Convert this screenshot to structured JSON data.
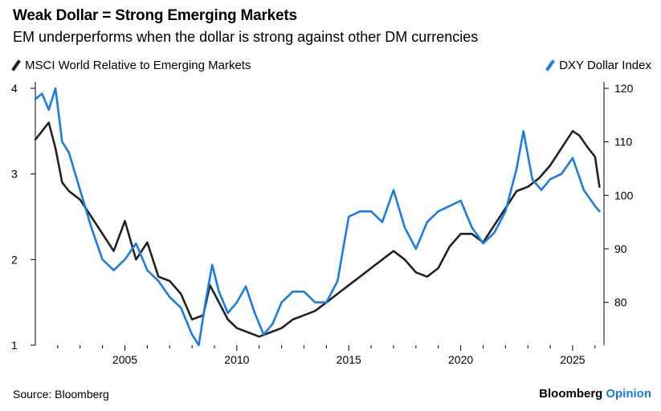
{
  "header": {
    "title": "Weak Dollar = Strong Emerging Markets",
    "subtitle": "EM underperforms when the dollar is strong against other DM currencies"
  },
  "footer": {
    "source": "Source: Bloomberg",
    "brand": "Bloomberg",
    "brand_accent": "Opinion"
  },
  "colors": {
    "msci": "#222222",
    "dxy": "#1a7bea",
    "axis": "#000000"
  },
  "chart_data": {
    "type": "line",
    "title": "Weak Dollar = Strong Emerging Markets",
    "subtitle": "EM underperforms when the dollar is strong against other DM currencies",
    "legend": "top",
    "grid": false,
    "x_ticks": [
      "2005",
      "2010",
      "2015",
      "2020",
      "2025"
    ],
    "x_range": [
      2001.0,
      2026.4
    ],
    "y_left": {
      "range": [
        1,
        4
      ],
      "ticks": [
        "1",
        "2",
        "3",
        "4"
      ]
    },
    "y_right": {
      "range": [
        72,
        120
      ],
      "ticks": [
        "80",
        "90",
        "100",
        "110",
        "120"
      ]
    },
    "series": [
      {
        "name": "MSCI World Relative to Emerging Markets",
        "axis": "left",
        "color": "#222222",
        "x": [
          2001.0,
          2001.3,
          2001.6,
          2001.9,
          2002.2,
          2002.5,
          2003.0,
          2003.5,
          2004.0,
          2004.5,
          2005.0,
          2005.5,
          2006.0,
          2006.5,
          2007.0,
          2007.5,
          2008.0,
          2008.5,
          2008.8,
          2009.2,
          2009.6,
          2010.0,
          2010.5,
          2011.0,
          2011.5,
          2012.0,
          2012.5,
          2013.0,
          2013.5,
          2014.0,
          2014.5,
          2015.0,
          2015.5,
          2016.0,
          2016.5,
          2017.0,
          2017.5,
          2018.0,
          2018.5,
          2019.0,
          2019.5,
          2020.0,
          2020.5,
          2021.0,
          2021.5,
          2022.0,
          2022.5,
          2023.0,
          2023.5,
          2024.0,
          2024.5,
          2025.0,
          2025.3,
          2025.7,
          2026.0,
          2026.2
        ],
        "values": [
          3.4,
          3.5,
          3.6,
          3.3,
          2.9,
          2.8,
          2.7,
          2.5,
          2.3,
          2.1,
          2.45,
          2.0,
          2.2,
          1.8,
          1.75,
          1.6,
          1.3,
          1.35,
          1.7,
          1.5,
          1.3,
          1.2,
          1.15,
          1.1,
          1.15,
          1.2,
          1.3,
          1.35,
          1.4,
          1.5,
          1.6,
          1.7,
          1.8,
          1.9,
          2.0,
          2.1,
          2.0,
          1.85,
          1.8,
          1.9,
          2.15,
          2.3,
          2.3,
          2.2,
          2.4,
          2.6,
          2.8,
          2.85,
          2.95,
          3.1,
          3.3,
          3.5,
          3.45,
          3.3,
          3.2,
          2.85
        ]
      },
      {
        "name": "DXY Dollar Index",
        "axis": "right",
        "color": "#1a7bea",
        "x": [
          2001.0,
          2001.3,
          2001.6,
          2001.9,
          2002.2,
          2002.5,
          2003.0,
          2003.5,
          2004.0,
          2004.5,
          2005.0,
          2005.5,
          2006.0,
          2006.5,
          2007.0,
          2007.5,
          2008.0,
          2008.3,
          2008.6,
          2008.9,
          2009.2,
          2009.6,
          2010.0,
          2010.4,
          2010.8,
          2011.2,
          2011.6,
          2012.0,
          2012.5,
          2013.0,
          2013.5,
          2014.0,
          2014.5,
          2015.0,
          2015.5,
          2016.0,
          2016.5,
          2017.0,
          2017.5,
          2018.0,
          2018.5,
          2019.0,
          2019.5,
          2020.0,
          2020.5,
          2021.0,
          2021.5,
          2022.0,
          2022.5,
          2022.8,
          2023.2,
          2023.6,
          2024.0,
          2024.5,
          2025.0,
          2025.5,
          2026.0,
          2026.2
        ],
        "values": [
          118,
          119,
          116,
          120,
          110,
          108,
          101,
          94,
          88,
          86,
          88,
          91,
          86,
          84,
          81,
          79,
          74,
          72,
          80,
          87,
          82,
          78,
          80,
          83,
          78,
          74,
          76,
          80,
          82,
          82,
          80,
          80,
          84,
          96,
          97,
          97,
          95,
          101,
          94,
          90,
          95,
          97,
          98,
          99,
          94,
          91,
          93,
          97,
          105,
          112,
          103,
          101,
          103,
          104,
          107,
          101,
          98,
          97
        ]
      }
    ]
  }
}
